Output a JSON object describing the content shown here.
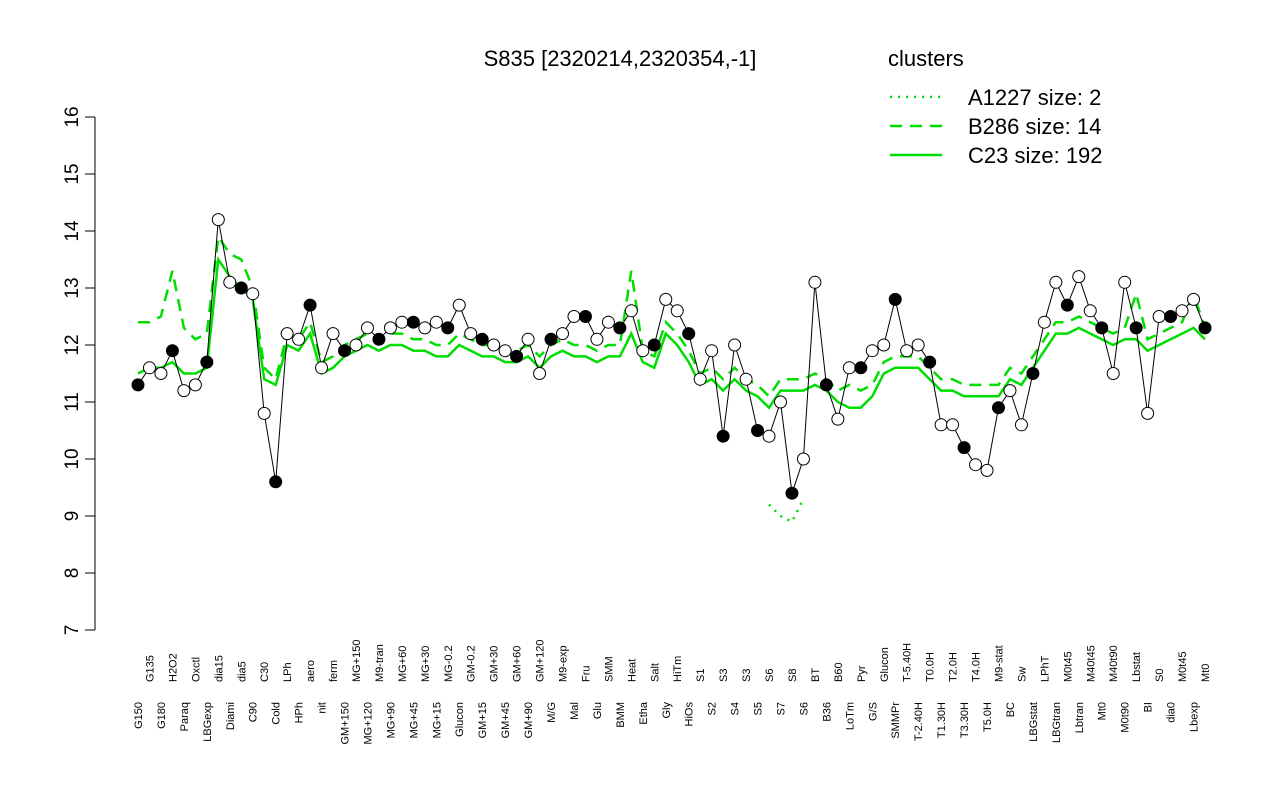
{
  "chart_data": {
    "type": "line",
    "title": "S835 [2320214,2320354,-1]",
    "legend_title": "clusters",
    "legend_color": "#00dd00",
    "ylim": [
      7,
      16
    ],
    "yticks": [
      7,
      8,
      9,
      10,
      11,
      12,
      13,
      14,
      15,
      16
    ],
    "categories": [
      "G150",
      "G135",
      "G180",
      "H2O2",
      "Paraq",
      "Oxctl",
      "LBGexp",
      "dia15",
      "Diami",
      "dia5",
      "C90",
      "C30",
      "Cold",
      "LPh",
      "HPh",
      "aero",
      "nit",
      "ferm",
      "GM+150",
      "MG+150",
      "MG+120",
      "M9-tran",
      "MG+90",
      "MG+60",
      "MG+45",
      "MG+30",
      "MG+15",
      "MG-0.2",
      "Glucon",
      "GM-0.2",
      "GM+15",
      "GM+30",
      "GM+45",
      "GM+60",
      "GM+90",
      "GM+120",
      "M/G",
      "M9-exp",
      "Mal",
      "Fru",
      "Glu",
      "SMM",
      "BMM",
      "Heat",
      "Etha",
      "Salt",
      "Gly",
      "HiTm",
      "HiOs",
      "S1",
      "S2",
      "S3",
      "S4",
      "S3",
      "S5",
      "S6",
      "S7",
      "S8",
      "S6",
      "BT",
      "B36",
      "B60",
      "LoTm",
      "Pyr",
      "G/S",
      "Glucon",
      "SMMPr",
      "T-5.40H",
      "T-2.40H",
      "T0.0H",
      "T1.30H",
      "T2.0H",
      "T3.30H",
      "T4.0H",
      "T5.0H",
      "M9-stat",
      "BC",
      "Sw",
      "LBGstat",
      "LPhT",
      "LBGtran",
      "M0t45",
      "Lbtran",
      "M40t45",
      "Mt0",
      "M40t90",
      "M0t90",
      "Lbstat",
      "BI",
      "S0",
      "dia0",
      "M0t45",
      "Lbexp",
      "Mt0"
    ],
    "values": [
      11.3,
      11.6,
      11.5,
      11.9,
      11.2,
      11.3,
      11.7,
      14.2,
      13.1,
      13.0,
      12.9,
      10.8,
      9.6,
      12.2,
      12.1,
      12.7,
      11.6,
      12.2,
      11.9,
      12.0,
      12.3,
      12.1,
      12.3,
      12.4,
      12.4,
      12.3,
      12.4,
      12.3,
      12.7,
      12.2,
      12.1,
      12.0,
      11.9,
      11.8,
      12.1,
      11.5,
      12.1,
      12.2,
      12.5,
      12.5,
      12.1,
      12.4,
      12.3,
      12.6,
      11.9,
      12.0,
      12.8,
      12.6,
      12.2,
      11.4,
      11.9,
      10.4,
      12.0,
      11.4,
      10.5,
      10.4,
      11.0,
      9.4,
      10.0,
      13.1,
      11.3,
      10.7,
      11.6,
      11.6,
      11.9,
      12.0,
      12.8,
      11.9,
      12.0,
      11.7,
      10.6,
      10.6,
      10.2,
      9.9,
      9.8,
      10.9,
      11.2,
      10.6,
      11.5,
      12.4,
      13.1,
      12.7,
      13.2,
      12.6,
      12.3,
      11.5,
      13.1,
      12.3,
      10.8,
      12.5,
      12.5,
      12.6,
      12.8,
      12.3
    ],
    "series": [
      {
        "name": "A1227 size: 2",
        "color": "#00dd00",
        "linestyle": "dotted",
        "values": [
          null,
          null,
          null,
          null,
          null,
          null,
          null,
          null,
          null,
          null,
          null,
          null,
          null,
          null,
          null,
          null,
          null,
          null,
          null,
          null,
          null,
          null,
          null,
          null,
          null,
          null,
          null,
          null,
          null,
          null,
          null,
          null,
          null,
          null,
          null,
          null,
          null,
          null,
          null,
          null,
          null,
          null,
          null,
          null,
          null,
          null,
          null,
          null,
          null,
          null,
          null,
          null,
          null,
          null,
          null,
          9.2,
          9.0,
          8.9,
          9.3,
          null,
          null,
          null,
          null,
          null,
          null,
          null,
          null,
          null,
          null,
          null,
          null,
          null,
          null,
          null,
          null,
          null,
          null,
          null,
          null,
          null,
          null,
          null,
          null,
          null,
          null,
          null,
          null,
          null,
          null,
          null,
          null,
          null,
          null,
          null
        ]
      },
      {
        "name": "B286 size: 14",
        "color": "#00dd00",
        "linestyle": "dashed",
        "values": [
          12.4,
          12.4,
          12.5,
          13.3,
          12.3,
          12.1,
          12.2,
          13.9,
          13.6,
          13.5,
          13.0,
          11.6,
          11.4,
          12.2,
          12.1,
          12.4,
          11.7,
          11.8,
          12.0,
          12.1,
          12.2,
          12.1,
          12.2,
          12.2,
          12.1,
          12.1,
          12.0,
          12.0,
          12.2,
          12.1,
          12.0,
          12.0,
          11.9,
          11.9,
          12.0,
          11.8,
          12.0,
          12.1,
          12.0,
          12.0,
          11.9,
          12.0,
          12.0,
          13.3,
          11.9,
          11.8,
          12.4,
          12.2,
          11.9,
          11.5,
          11.6,
          11.4,
          11.6,
          11.4,
          11.3,
          11.1,
          11.4,
          11.4,
          11.4,
          11.5,
          11.4,
          11.2,
          11.3,
          11.2,
          11.3,
          11.7,
          11.8,
          11.8,
          11.8,
          11.6,
          11.4,
          11.4,
          11.3,
          11.3,
          11.3,
          11.3,
          11.6,
          11.5,
          11.8,
          12.1,
          12.4,
          12.4,
          12.5,
          12.4,
          12.3,
          12.2,
          12.3,
          12.9,
          12.1,
          12.2,
          12.3,
          12.4,
          12.9,
          12.3
        ]
      },
      {
        "name": "C23 size: 192",
        "color": "#00dd00",
        "linestyle": "solid",
        "values": [
          11.5,
          11.6,
          11.6,
          11.7,
          11.5,
          11.5,
          11.6,
          13.5,
          13.2,
          13.0,
          12.8,
          11.4,
          11.3,
          12.0,
          11.9,
          12.2,
          11.5,
          11.6,
          11.8,
          11.9,
          12.0,
          11.9,
          12.0,
          12.0,
          11.9,
          11.9,
          11.8,
          11.8,
          12.0,
          11.9,
          11.8,
          11.8,
          11.7,
          11.7,
          11.8,
          11.6,
          11.8,
          11.9,
          11.8,
          11.8,
          11.7,
          11.8,
          11.8,
          12.2,
          11.7,
          11.6,
          12.2,
          12.0,
          11.7,
          11.3,
          11.4,
          11.2,
          11.4,
          11.2,
          11.1,
          10.9,
          11.2,
          11.2,
          11.2,
          11.3,
          11.2,
          11.0,
          10.9,
          10.9,
          11.1,
          11.5,
          11.6,
          11.6,
          11.6,
          11.4,
          11.2,
          11.2,
          11.1,
          11.1,
          11.1,
          11.1,
          11.4,
          11.3,
          11.6,
          11.9,
          12.2,
          12.2,
          12.3,
          12.2,
          12.1,
          12.0,
          12.1,
          12.1,
          11.9,
          12.0,
          12.1,
          12.2,
          12.3,
          12.1
        ]
      }
    ]
  }
}
